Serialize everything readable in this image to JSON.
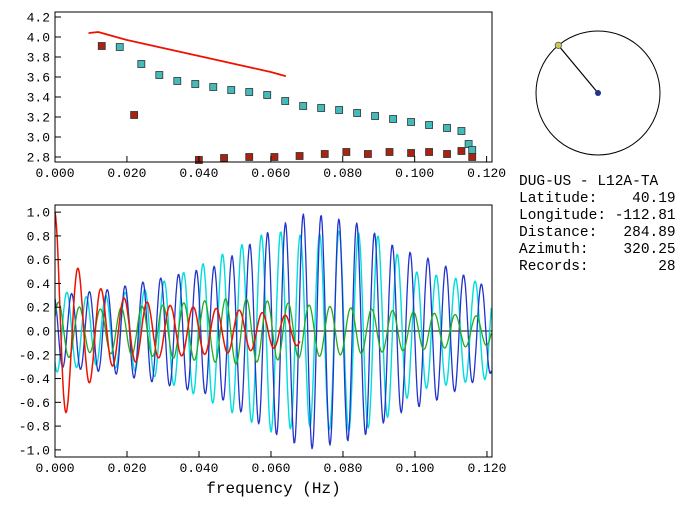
{
  "page": {
    "background": "#ffffff"
  },
  "station_info": {
    "title": "DUG-US - L12A-TA",
    "lines": [
      "Latitude:    40.19",
      "Longitude: -112.81",
      "Distance:   284.89",
      "Azimuth:    320.25",
      "Records:        28"
    ]
  },
  "dial": {
    "azimuth_deg": 320.25,
    "circle_color": "#000000",
    "center_dot_color": "#223388",
    "end_dot_color": "#cccc55"
  },
  "chart_data": [
    {
      "type": "scatter",
      "name": "dispersion-panel",
      "title": "",
      "xlabel": "",
      "ylabel": "",
      "xlim": [
        0,
        0.1215
      ],
      "ylim": [
        2.75,
        4.25
      ],
      "grid": false,
      "x_ticks": [
        [
          0.0,
          "0.000"
        ],
        [
          0.02,
          "0.020"
        ],
        [
          0.04,
          "0.040"
        ],
        [
          0.06,
          "0.060"
        ],
        [
          0.08,
          "0.080"
        ],
        [
          0.1,
          "0.100"
        ],
        [
          0.12,
          "0.120"
        ]
      ],
      "y_ticks": [
        [
          2.8,
          "2.8"
        ],
        [
          3.0,
          "3.0"
        ],
        [
          3.2,
          "3.2"
        ],
        [
          3.4,
          "3.4"
        ],
        [
          3.6,
          "3.6"
        ],
        [
          3.8,
          "3.8"
        ],
        [
          4.0,
          "4.0"
        ],
        [
          4.2,
          "4.2"
        ]
      ],
      "series": [
        {
          "name": "reference-dispersion-curve",
          "style": "line",
          "color": "#ee1100",
          "width": 1.7,
          "points": [
            [
              0.0095,
              4.04
            ],
            [
              0.012,
              4.05
            ],
            [
              0.016,
              4.01
            ],
            [
              0.02,
              3.97
            ],
            [
              0.025,
              3.93
            ],
            [
              0.03,
              3.89
            ],
            [
              0.035,
              3.85
            ],
            [
              0.04,
              3.81
            ],
            [
              0.045,
              3.77
            ],
            [
              0.05,
              3.73
            ],
            [
              0.055,
              3.69
            ],
            [
              0.06,
              3.65
            ],
            [
              0.064,
              3.61
            ]
          ]
        },
        {
          "name": "measured-dispersion-cyan",
          "style": "squares",
          "color": "#44bbbb",
          "points": [
            [
              0.018,
              3.9
            ],
            [
              0.024,
              3.73
            ],
            [
              0.029,
              3.62
            ],
            [
              0.034,
              3.56
            ],
            [
              0.039,
              3.53
            ],
            [
              0.044,
              3.5
            ],
            [
              0.049,
              3.47
            ],
            [
              0.054,
              3.45
            ],
            [
              0.059,
              3.42
            ],
            [
              0.064,
              3.36
            ],
            [
              0.069,
              3.31
            ],
            [
              0.074,
              3.29
            ],
            [
              0.079,
              3.27
            ],
            [
              0.084,
              3.24
            ],
            [
              0.089,
              3.21
            ],
            [
              0.094,
              3.18
            ],
            [
              0.099,
              3.15
            ],
            [
              0.104,
              3.12
            ],
            [
              0.109,
              3.09
            ],
            [
              0.113,
              3.06
            ],
            [
              0.115,
              2.93
            ],
            [
              0.116,
              2.87
            ]
          ]
        },
        {
          "name": "measured-dispersion-darkred",
          "style": "squares",
          "color": "#aa2211",
          "points": [
            [
              0.013,
              3.91
            ],
            [
              0.022,
              3.22
            ],
            [
              0.04,
              2.77
            ],
            [
              0.047,
              2.79
            ],
            [
              0.054,
              2.8
            ],
            [
              0.061,
              2.8
            ],
            [
              0.068,
              2.81
            ],
            [
              0.075,
              2.83
            ],
            [
              0.081,
              2.85
            ],
            [
              0.087,
              2.83
            ],
            [
              0.093,
              2.85
            ],
            [
              0.099,
              2.84
            ],
            [
              0.104,
              2.85
            ],
            [
              0.109,
              2.83
            ],
            [
              0.113,
              2.86
            ],
            [
              0.116,
              2.8
            ]
          ]
        }
      ]
    },
    {
      "type": "line",
      "name": "waveform-panel",
      "title": "",
      "xlabel": "frequency (Hz)",
      "ylabel": "",
      "xlim": [
        0,
        0.1214
      ],
      "ylim": [
        -1.06,
        1.06
      ],
      "grid": false,
      "zero_line": true,
      "x_ticks": [
        [
          0.0,
          "0.000"
        ],
        [
          0.02,
          "0.020"
        ],
        [
          0.04,
          "0.040"
        ],
        [
          0.06,
          "0.060"
        ],
        [
          0.08,
          "0.080"
        ],
        [
          0.1,
          "0.100"
        ],
        [
          0.12,
          "0.120"
        ]
      ],
      "y_ticks": [
        [
          1.0,
          "1.0"
        ],
        [
          0.8,
          "0.8"
        ],
        [
          0.6,
          "0.6"
        ],
        [
          0.4,
          "0.4"
        ],
        [
          0.2,
          "0.2"
        ],
        [
          0.0,
          "0.0"
        ],
        [
          -0.2,
          "-0.2"
        ],
        [
          -0.4,
          "-0.4"
        ],
        [
          -0.6,
          "-0.6"
        ],
        [
          -0.8,
          "-0.8"
        ],
        [
          -1.0,
          "-1.0"
        ]
      ],
      "series": [
        {
          "name": "waveform-cyan",
          "style": "wave",
          "color": "#00dddd",
          "width": 1.4,
          "period": 0.0054,
          "phase": 4.0,
          "x_range": [
            0,
            0.1214
          ],
          "envelope": [
            [
              0,
              0.35
            ],
            [
              0.01,
              0.28
            ],
            [
              0.025,
              0.35
            ],
            [
              0.04,
              0.55
            ],
            [
              0.05,
              0.7
            ],
            [
              0.06,
              0.85
            ],
            [
              0.07,
              0.8
            ],
            [
              0.08,
              0.85
            ],
            [
              0.09,
              0.8
            ],
            [
              0.1,
              0.5
            ],
            [
              0.11,
              0.45
            ],
            [
              0.1214,
              0.4
            ]
          ]
        },
        {
          "name": "waveform-blue",
          "style": "wave",
          "color": "#2233cc",
          "width": 1.3,
          "period": 0.00495,
          "phase": 2.0,
          "x_range": [
            0,
            0.1214
          ],
          "envelope": [
            [
              0,
              0.3
            ],
            [
              0.015,
              0.35
            ],
            [
              0.03,
              0.45
            ],
            [
              0.045,
              0.55
            ],
            [
              0.06,
              0.85
            ],
            [
              0.07,
              1.0
            ],
            [
              0.078,
              0.95
            ],
            [
              0.085,
              0.9
            ],
            [
              0.095,
              0.7
            ],
            [
              0.105,
              0.6
            ],
            [
              0.115,
              0.45
            ],
            [
              0.1214,
              0.35
            ]
          ]
        },
        {
          "name": "waveform-green",
          "style": "wave",
          "color": "#22aa22",
          "width": 1.3,
          "period": 0.0058,
          "phase": 0.5,
          "x_range": [
            0,
            0.1214
          ],
          "envelope": [
            [
              0,
              0.25
            ],
            [
              0.01,
              0.18
            ],
            [
              0.03,
              0.22
            ],
            [
              0.05,
              0.28
            ],
            [
              0.07,
              0.22
            ],
            [
              0.09,
              0.18
            ],
            [
              0.105,
              0.15
            ],
            [
              0.1214,
              0.12
            ]
          ]
        },
        {
          "name": "waveform-red",
          "style": "wave",
          "color": "#ee1100",
          "width": 1.5,
          "period": 0.0064,
          "phase": 1.5708,
          "x_range": [
            0,
            0.068
          ],
          "envelope": [
            [
              0,
              1.0
            ],
            [
              0.004,
              0.6
            ],
            [
              0.009,
              0.45
            ],
            [
              0.015,
              0.3
            ],
            [
              0.03,
              0.22
            ],
            [
              0.05,
              0.18
            ],
            [
              0.068,
              0.12
            ]
          ]
        }
      ]
    }
  ]
}
